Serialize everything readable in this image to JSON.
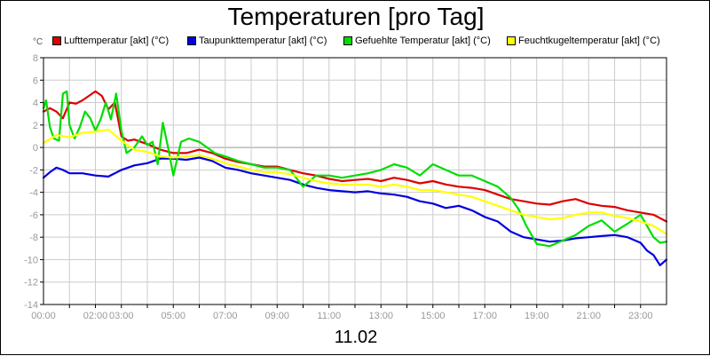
{
  "chart_data": {
    "type": "line",
    "title": "Temperaturen [pro Tag]",
    "unit": "°C",
    "date_label": "11.02",
    "ylim": [
      -14,
      8
    ],
    "y_ticks": [
      "8",
      "6",
      "4",
      "2",
      "0",
      "-2",
      "-4",
      "-6",
      "-8",
      "-10",
      "-12",
      "-14"
    ],
    "y_tick_values": [
      8,
      6,
      4,
      2,
      0,
      -2,
      -4,
      -6,
      -8,
      -10,
      -12,
      -14
    ],
    "xlim": [
      0,
      24
    ],
    "x_ticks": [
      "00:00",
      "02:00",
      "03:00",
      "05:00",
      "07:00",
      "09:00",
      "11:00",
      "13:00",
      "15:00",
      "17:00",
      "19:00",
      "21:00",
      "23:00"
    ],
    "x_tick_values": [
      0,
      2,
      3,
      5,
      7,
      9,
      11,
      13,
      15,
      17,
      19,
      21,
      23
    ],
    "grid": true,
    "legend": "top",
    "series": [
      {
        "name": "Lufttemperatur [akt] (°C)",
        "color": "#dd0000",
        "x": [
          0,
          0.25,
          0.5,
          0.75,
          1.0,
          1.25,
          1.5,
          1.75,
          2.0,
          2.25,
          2.5,
          2.75,
          3.0,
          3.25,
          3.5,
          4.0,
          4.5,
          5.0,
          5.5,
          6.0,
          6.5,
          7.0,
          7.5,
          8.0,
          8.5,
          9.0,
          9.5,
          10.0,
          10.5,
          11.0,
          11.5,
          12.0,
          12.5,
          13.0,
          13.5,
          14.0,
          14.5,
          15.0,
          15.5,
          16.0,
          16.5,
          17.0,
          17.5,
          18.0,
          18.5,
          19.0,
          19.5,
          20.0,
          20.5,
          21.0,
          21.5,
          22.0,
          22.5,
          23.0,
          23.5,
          24.0
        ],
        "y": [
          3.2,
          3.5,
          3.2,
          2.6,
          4.0,
          3.9,
          4.2,
          4.6,
          5.0,
          4.6,
          3.4,
          4.0,
          1.0,
          0.6,
          0.7,
          0.3,
          -0.2,
          -0.5,
          -0.5,
          -0.2,
          -0.5,
          -1.0,
          -1.3,
          -1.5,
          -1.7,
          -1.7,
          -2.0,
          -2.3,
          -2.5,
          -2.8,
          -3.0,
          -2.9,
          -2.8,
          -3.0,
          -2.7,
          -2.9,
          -3.2,
          -3.0,
          -3.3,
          -3.5,
          -3.6,
          -3.8,
          -4.2,
          -4.6,
          -4.8,
          -5.0,
          -5.1,
          -4.8,
          -4.6,
          -5.0,
          -5.2,
          -5.3,
          -5.6,
          -5.8,
          -6.0,
          -6.6
        ]
      },
      {
        "name": "Taupunkttemperatur [akt] (°C)",
        "color": "#0000dd",
        "x": [
          0,
          0.25,
          0.5,
          0.75,
          1.0,
          1.5,
          2.0,
          2.5,
          2.75,
          3.0,
          3.5,
          4.0,
          4.5,
          5.0,
          5.5,
          6.0,
          6.5,
          7.0,
          7.5,
          8.0,
          8.5,
          9.0,
          9.5,
          10.0,
          10.5,
          11.0,
          11.5,
          12.0,
          12.5,
          13.0,
          13.5,
          14.0,
          14.5,
          15.0,
          15.5,
          16.0,
          16.5,
          17.0,
          17.5,
          18.0,
          18.5,
          19.0,
          19.5,
          20.0,
          20.5,
          21.0,
          21.5,
          22.0,
          22.5,
          23.0,
          23.25,
          23.5,
          23.75,
          24.0
        ],
        "y": [
          -2.7,
          -2.2,
          -1.8,
          -2.0,
          -2.3,
          -2.3,
          -2.5,
          -2.6,
          -2.3,
          -2.0,
          -1.6,
          -1.4,
          -1.0,
          -1.0,
          -1.1,
          -0.9,
          -1.2,
          -1.8,
          -2.0,
          -2.3,
          -2.5,
          -2.7,
          -2.9,
          -3.3,
          -3.6,
          -3.8,
          -3.9,
          -4.0,
          -3.9,
          -4.1,
          -4.2,
          -4.4,
          -4.8,
          -5.0,
          -5.4,
          -5.2,
          -5.6,
          -6.2,
          -6.6,
          -7.5,
          -8.0,
          -8.2,
          -8.4,
          -8.3,
          -8.1,
          -8.0,
          -7.9,
          -7.8,
          -8.0,
          -8.5,
          -9.2,
          -9.6,
          -10.5,
          -10.0
        ]
      },
      {
        "name": "Gefuehlte Temperatur [akt] (°C)",
        "color": "#00dd00",
        "x": [
          0,
          0.1,
          0.25,
          0.4,
          0.6,
          0.75,
          0.9,
          1.0,
          1.2,
          1.4,
          1.6,
          1.8,
          2.0,
          2.2,
          2.4,
          2.6,
          2.8,
          3.0,
          3.2,
          3.5,
          3.8,
          4.0,
          4.2,
          4.4,
          4.6,
          4.8,
          5.0,
          5.3,
          5.6,
          6.0,
          6.3,
          6.6,
          7.0,
          7.5,
          8.0,
          8.5,
          9.0,
          9.5,
          10.0,
          10.5,
          11.0,
          11.5,
          12.0,
          12.5,
          13.0,
          13.5,
          14.0,
          14.5,
          15.0,
          15.5,
          16.0,
          16.5,
          17.0,
          17.5,
          18.0,
          18.3,
          18.6,
          19.0,
          19.5,
          20.0,
          20.5,
          21.0,
          21.5,
          22.0,
          22.5,
          23.0,
          23.5,
          23.75,
          24.0
        ],
        "y": [
          3.5,
          4.2,
          1.8,
          0.8,
          0.6,
          4.8,
          5.0,
          2.0,
          0.8,
          1.8,
          3.2,
          2.6,
          1.5,
          2.5,
          4.0,
          2.5,
          4.8,
          1.5,
          -0.5,
          0.0,
          1.0,
          0.2,
          0.5,
          -1.5,
          2.2,
          0.0,
          -2.5,
          0.5,
          0.8,
          0.5,
          0.0,
          -0.5,
          -0.8,
          -1.2,
          -1.5,
          -1.8,
          -1.8,
          -2.0,
          -3.5,
          -2.5,
          -2.5,
          -2.7,
          -2.5,
          -2.3,
          -2.0,
          -1.5,
          -1.8,
          -2.5,
          -1.5,
          -2.0,
          -2.5,
          -2.5,
          -3.0,
          -3.5,
          -4.5,
          -5.5,
          -7.0,
          -8.6,
          -8.8,
          -8.3,
          -7.8,
          -7.0,
          -6.5,
          -7.5,
          -6.8,
          -6.0,
          -8.0,
          -8.5,
          -8.4
        ]
      },
      {
        "name": "Feuchtkugeltemperatur [akt] (°C)",
        "color": "#ffff00",
        "x": [
          0,
          0.5,
          1.0,
          1.5,
          2.0,
          2.5,
          3.0,
          3.5,
          4.0,
          4.5,
          5.0,
          5.5,
          6.0,
          6.5,
          7.0,
          7.5,
          8.0,
          8.5,
          9.0,
          9.5,
          10.0,
          10.5,
          11.0,
          11.5,
          12.0,
          12.5,
          13.0,
          13.5,
          14.0,
          14.5,
          15.0,
          15.5,
          16.0,
          16.5,
          17.0,
          17.5,
          18.0,
          18.5,
          19.0,
          19.5,
          20.0,
          20.5,
          21.0,
          21.5,
          22.0,
          22.5,
          23.0,
          23.5,
          24.0
        ],
        "y": [
          0.4,
          1.1,
          0.9,
          1.3,
          1.4,
          1.6,
          0.6,
          -0.2,
          -0.4,
          -0.8,
          -0.9,
          -0.8,
          -0.7,
          -1.0,
          -1.4,
          -1.7,
          -2.0,
          -2.2,
          -2.2,
          -2.4,
          -2.7,
          -3.0,
          -3.2,
          -3.3,
          -3.3,
          -3.3,
          -3.5,
          -3.3,
          -3.5,
          -3.8,
          -3.8,
          -4.0,
          -4.2,
          -4.4,
          -4.8,
          -5.2,
          -5.6,
          -6.0,
          -6.2,
          -6.4,
          -6.3,
          -6.0,
          -5.8,
          -5.8,
          -6.1,
          -6.3,
          -6.6,
          -7.0,
          -7.7
        ]
      }
    ]
  }
}
